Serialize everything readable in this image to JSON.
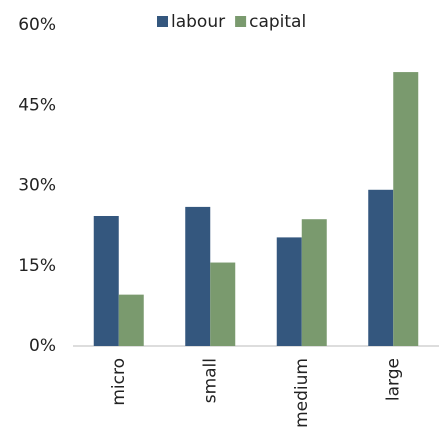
{
  "chart_data": {
    "type": "bar",
    "categories": [
      "micro",
      "small",
      "medium",
      "large"
    ],
    "series": [
      {
        "name": "labour",
        "color": "#34577e",
        "values": [
          24.3,
          26,
          20.3,
          29.2
        ]
      },
      {
        "name": "capital",
        "color": "#7a9a6e",
        "values": [
          9.6,
          15.6,
          23.7,
          51.2
        ]
      }
    ],
    "ylim": [
      0,
      60
    ],
    "yticks": [
      {
        "value": 0,
        "label": "0%"
      },
      {
        "value": 15,
        "label": "15%"
      },
      {
        "value": 30,
        "label": "30%"
      },
      {
        "value": 45,
        "label": "45%"
      },
      {
        "value": 60,
        "label": "60%"
      }
    ],
    "grid": false,
    "legend": "top"
  }
}
